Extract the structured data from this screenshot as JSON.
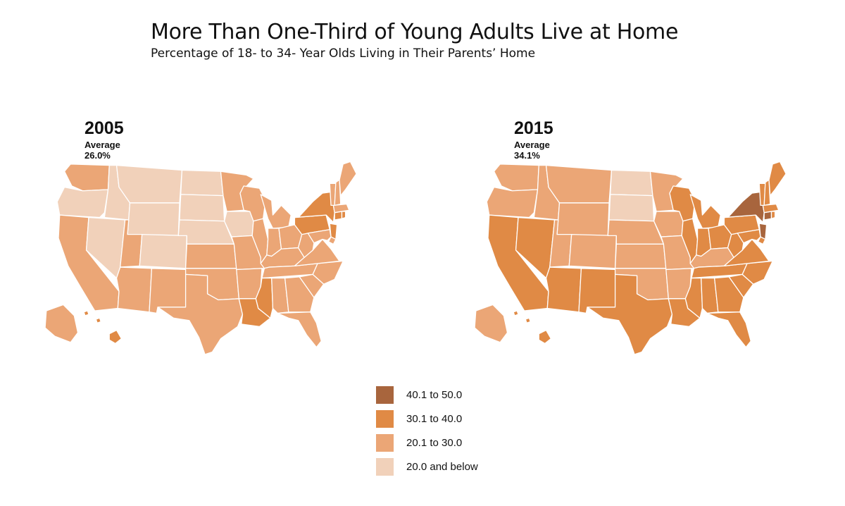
{
  "title": "More Than One-Third of Young Adults Live at Home",
  "subtitle": "Percentage of 18- to 34- Year Olds Living in Their Parents’ Home",
  "colors": {
    "c40_50": "#a8653d",
    "c30_40": "#e08a45",
    "c20_30": "#eba676",
    "c0_20": "#f1d1ba"
  },
  "maps": [
    {
      "year": "2005",
      "average": "Average 26.0%",
      "states": {
        "WA": "20.1 to 30.0",
        "OR": "20.0 and below",
        "CA": "20.1 to 30.0",
        "NV": "20.0 and below",
        "ID": "20.0 and below",
        "MT": "20.0 and below",
        "WY": "20.0 and below",
        "UT": "20.1 to 30.0",
        "AZ": "20.1 to 30.0",
        "CO": "20.0 and below",
        "NM": "20.1 to 30.0",
        "ND": "20.0 and below",
        "SD": "20.0 and below",
        "NE": "20.0 and below",
        "KS": "20.1 to 30.0",
        "OK": "20.1 to 30.0",
        "TX": "20.1 to 30.0",
        "MN": "20.1 to 30.0",
        "IA": "20.0 and below",
        "MO": "20.1 to 30.0",
        "AR": "20.1 to 30.0",
        "LA": "30.1 to 40.0",
        "WI": "20.1 to 30.0",
        "IL": "20.1 to 30.0",
        "MI": "20.1 to 30.0",
        "IN": "20.1 to 30.0",
        "OH": "20.1 to 30.0",
        "KY": "20.1 to 30.0",
        "TN": "20.1 to 30.0",
        "MS": "30.1 to 40.0",
        "AL": "20.1 to 30.0",
        "GA": "20.1 to 30.0",
        "FL": "20.1 to 30.0",
        "SC": "20.1 to 30.0",
        "NC": "20.1 to 30.0",
        "VA": "20.1 to 30.0",
        "WV": "20.1 to 30.0",
        "PA": "30.1 to 40.0",
        "NY": "30.1 to 40.0",
        "NJ": "30.1 to 40.0",
        "MD": "20.1 to 30.0",
        "DE": "20.1 to 30.0",
        "CT": "30.1 to 40.0",
        "RI": "30.1 to 40.0",
        "MA": "20.1 to 30.0",
        "VT": "20.1 to 30.0",
        "NH": "20.1 to 30.0",
        "ME": "20.1 to 30.0",
        "AK": "20.1 to 30.0",
        "HI": "30.1 to 40.0"
      }
    },
    {
      "year": "2015",
      "average": "Average 34.1%",
      "states": {
        "WA": "20.1 to 30.0",
        "OR": "20.1 to 30.0",
        "CA": "30.1 to 40.0",
        "NV": "30.1 to 40.0",
        "ID": "20.1 to 30.0",
        "MT": "20.1 to 30.0",
        "WY": "20.1 to 30.0",
        "UT": "20.1 to 30.0",
        "AZ": "30.1 to 40.0",
        "CO": "20.1 to 30.0",
        "NM": "30.1 to 40.0",
        "ND": "20.0 and below",
        "SD": "20.0 and below",
        "NE": "20.1 to 30.0",
        "KS": "20.1 to 30.0",
        "OK": "20.1 to 30.0",
        "TX": "30.1 to 40.0",
        "MN": "20.1 to 30.0",
        "IA": "20.1 to 30.0",
        "MO": "20.1 to 30.0",
        "AR": "20.1 to 30.0",
        "LA": "30.1 to 40.0",
        "WI": "30.1 to 40.0",
        "IL": "30.1 to 40.0",
        "MI": "30.1 to 40.0",
        "IN": "30.1 to 40.0",
        "OH": "30.1 to 40.0",
        "KY": "20.1 to 30.0",
        "TN": "30.1 to 40.0",
        "MS": "30.1 to 40.0",
        "AL": "30.1 to 40.0",
        "GA": "30.1 to 40.0",
        "FL": "30.1 to 40.0",
        "SC": "30.1 to 40.0",
        "NC": "30.1 to 40.0",
        "VA": "30.1 to 40.0",
        "WV": "30.1 to 40.0",
        "PA": "30.1 to 40.0",
        "NY": "40.1 to 50.0",
        "NJ": "40.1 to 50.0",
        "MD": "30.1 to 40.0",
        "DE": "30.1 to 40.0",
        "CT": "40.1 to 50.0",
        "RI": "30.1 to 40.0",
        "MA": "30.1 to 40.0",
        "VT": "30.1 to 40.0",
        "NH": "30.1 to 40.0",
        "ME": "30.1 to 40.0",
        "AK": "20.1 to 30.0",
        "HI": "30.1 to 40.0"
      }
    }
  ],
  "legend": [
    {
      "label": "40.1 to 50.0",
      "color": "#a8653d"
    },
    {
      "label": "30.1 to 40.0",
      "color": "#e08a45"
    },
    {
      "label": "20.1 to 30.0",
      "color": "#eba676"
    },
    {
      "label": "20.0 and below",
      "color": "#f1d1ba"
    }
  ]
}
